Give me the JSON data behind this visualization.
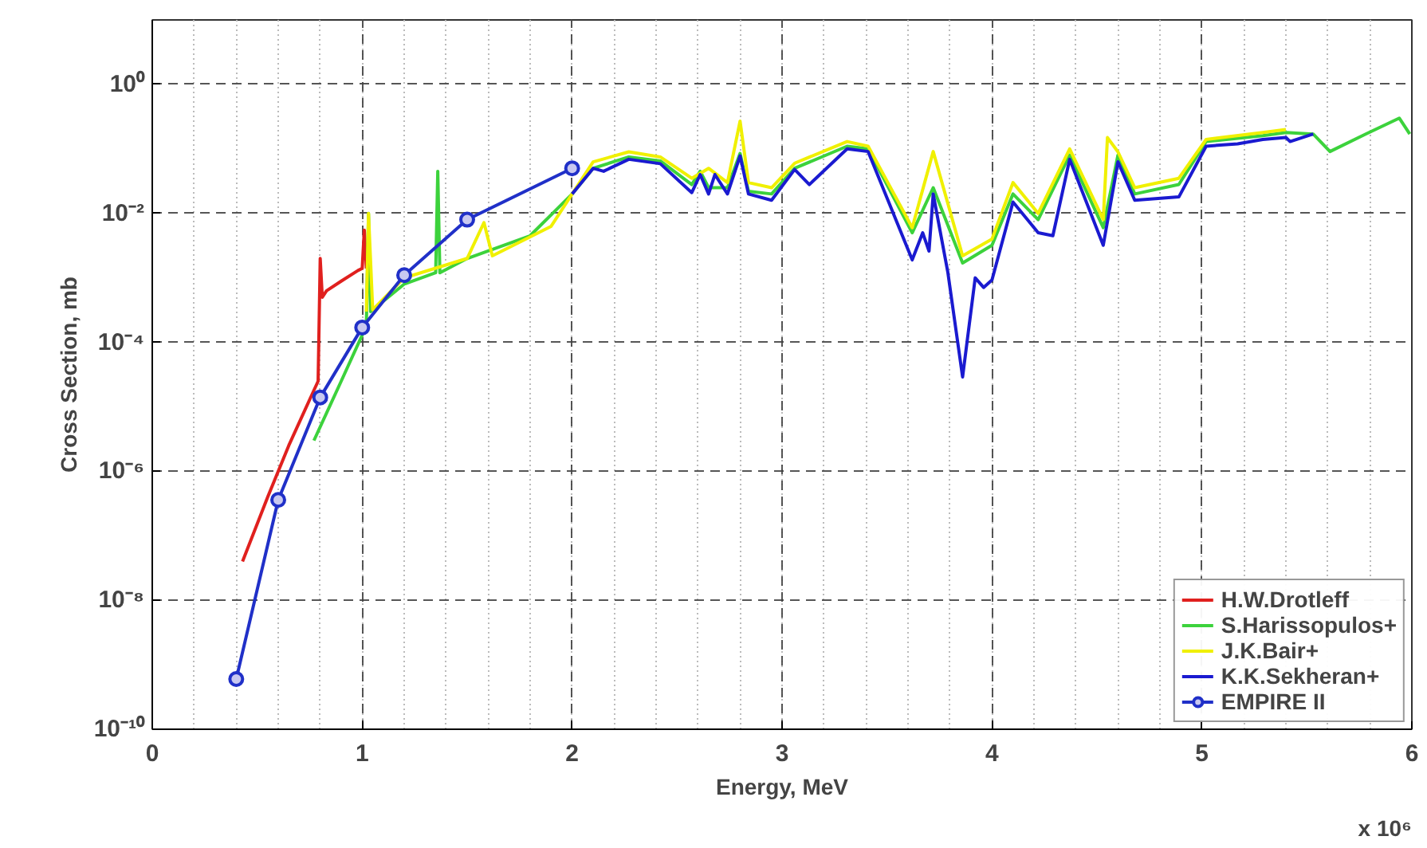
{
  "chart_data": {
    "type": "line",
    "xlabel": "Energy, MeV",
    "ylabel": "Cross Section, mb",
    "annotations": [
      "x 10⁶"
    ],
    "log": "y",
    "grid": true,
    "legend": "bottom right",
    "xlim": [
      0,
      6
    ],
    "xticks": [
      0,
      1,
      2,
      3,
      4,
      5,
      6
    ],
    "ylim": [
      1e-10,
      10
    ],
    "yticks": [
      {
        "value": 1e-10,
        "label": "10⁻¹⁰"
      },
      {
        "value": 1e-08,
        "label": "10⁻⁸"
      },
      {
        "value": 1e-06,
        "label": "10⁻⁶"
      },
      {
        "value": 0.0001,
        "label": "10⁻⁴"
      },
      {
        "value": 0.01,
        "label": "10⁻²"
      },
      {
        "value": 1,
        "label": "10⁰"
      }
    ],
    "series": [
      {
        "name": "H.W.Drotleff",
        "color": "#e0201e",
        "marker": "none",
        "x": [
          0.43,
          0.55,
          0.65,
          0.75,
          0.79,
          0.8,
          0.81,
          0.83,
          0.9,
          0.98,
          1.0,
          1.01,
          1.02
        ],
        "values": [
          4e-08,
          4e-07,
          2.5e-06,
          1.3e-05,
          2.5e-05,
          0.002,
          0.0005,
          0.00063,
          0.00089,
          0.0013,
          0.0014,
          0.0055,
          0.0014
        ]
      },
      {
        "name": "S.Harissopulos+",
        "color": "#3cd23c",
        "marker": "none",
        "x": [
          0.77,
          0.9,
          1.0,
          1.02,
          1.03,
          1.04,
          1.2,
          1.35,
          1.36,
          1.37,
          1.5,
          1.8,
          2.0,
          2.1,
          2.27,
          2.42,
          2.57,
          2.61,
          2.65,
          2.74,
          2.8,
          2.84,
          2.95,
          3.06,
          3.31,
          3.41,
          3.62,
          3.72,
          3.86,
          4.0,
          4.1,
          4.22,
          4.37,
          4.53,
          4.6,
          4.68,
          4.89,
          5.02,
          5.29,
          5.4,
          5.53,
          5.61,
          5.78,
          5.94,
          5.99
        ],
        "values": [
          3e-06,
          2.5e-05,
          0.00013,
          0.0002,
          0.01,
          0.0003,
          0.0008,
          0.0012,
          0.045,
          0.0012,
          0.002,
          0.0045,
          0.02,
          0.05,
          0.075,
          0.065,
          0.028,
          0.045,
          0.025,
          0.025,
          0.085,
          0.022,
          0.02,
          0.05,
          0.11,
          0.1,
          0.005,
          0.025,
          0.0017,
          0.0032,
          0.02,
          0.008,
          0.08,
          0.006,
          0.08,
          0.02,
          0.028,
          0.13,
          0.16,
          0.18,
          0.17,
          0.091,
          0.17,
          0.3,
          0.17
        ]
      },
      {
        "name": "J.K.Bair+",
        "color": "#f0f000",
        "marker": "none",
        "x": [
          1.02,
          1.03,
          1.05,
          1.2,
          1.5,
          1.58,
          1.62,
          1.9,
          2.0,
          2.1,
          2.27,
          2.42,
          2.57,
          2.65,
          2.74,
          2.8,
          2.84,
          2.95,
          3.06,
          3.31,
          3.41,
          3.62,
          3.72,
          3.86,
          4.0,
          4.1,
          4.22,
          4.37,
          4.53,
          4.55,
          4.6,
          4.68,
          4.89,
          5.02,
          5.29,
          5.4
        ],
        "values": [
          0.0003,
          0.01,
          0.00032,
          0.001,
          0.002,
          0.0072,
          0.0022,
          0.0063,
          0.02,
          0.063,
          0.09,
          0.075,
          0.035,
          0.05,
          0.03,
          0.27,
          0.03,
          0.025,
          0.06,
          0.13,
          0.11,
          0.006,
          0.091,
          0.0022,
          0.004,
          0.03,
          0.01,
          0.1,
          0.008,
          0.15,
          0.09,
          0.025,
          0.035,
          0.14,
          0.18,
          0.2
        ]
      },
      {
        "name": "K.K.Sekheran+",
        "color": "#1a1ad0",
        "marker": "none",
        "x": [
          2.0,
          2.1,
          2.15,
          2.27,
          2.42,
          2.57,
          2.61,
          2.65,
          2.68,
          2.74,
          2.8,
          2.84,
          2.95,
          3.06,
          3.13,
          3.31,
          3.41,
          3.62,
          3.67,
          3.7,
          3.72,
          3.79,
          3.86,
          3.92,
          3.96,
          4.0,
          4.1,
          4.22,
          4.29,
          4.37,
          4.53,
          4.6,
          4.68,
          4.89,
          5.02,
          5.17,
          5.29,
          5.4,
          5.42,
          5.53
        ],
        "values": [
          0.02,
          0.05,
          0.045,
          0.069,
          0.059,
          0.021,
          0.04,
          0.02,
          0.04,
          0.02,
          0.078,
          0.02,
          0.016,
          0.048,
          0.028,
          0.1,
          0.091,
          0.0019,
          0.005,
          0.0026,
          0.02,
          0.0012,
          2.9e-05,
          0.001,
          0.00071,
          0.00093,
          0.015,
          0.005,
          0.0045,
          0.069,
          0.0032,
          0.063,
          0.016,
          0.018,
          0.11,
          0.12,
          0.14,
          0.15,
          0.13,
          0.17
        ]
      },
      {
        "name": "EMPIRE II",
        "color": "#2030c8",
        "marker": "circle",
        "x": [
          0.4,
          0.6,
          0.8,
          1.0,
          1.2,
          1.5,
          2.0
        ],
        "values": [
          6e-10,
          3.6e-07,
          1.4e-05,
          0.00017,
          0.0011,
          0.008,
          0.05
        ]
      }
    ]
  }
}
